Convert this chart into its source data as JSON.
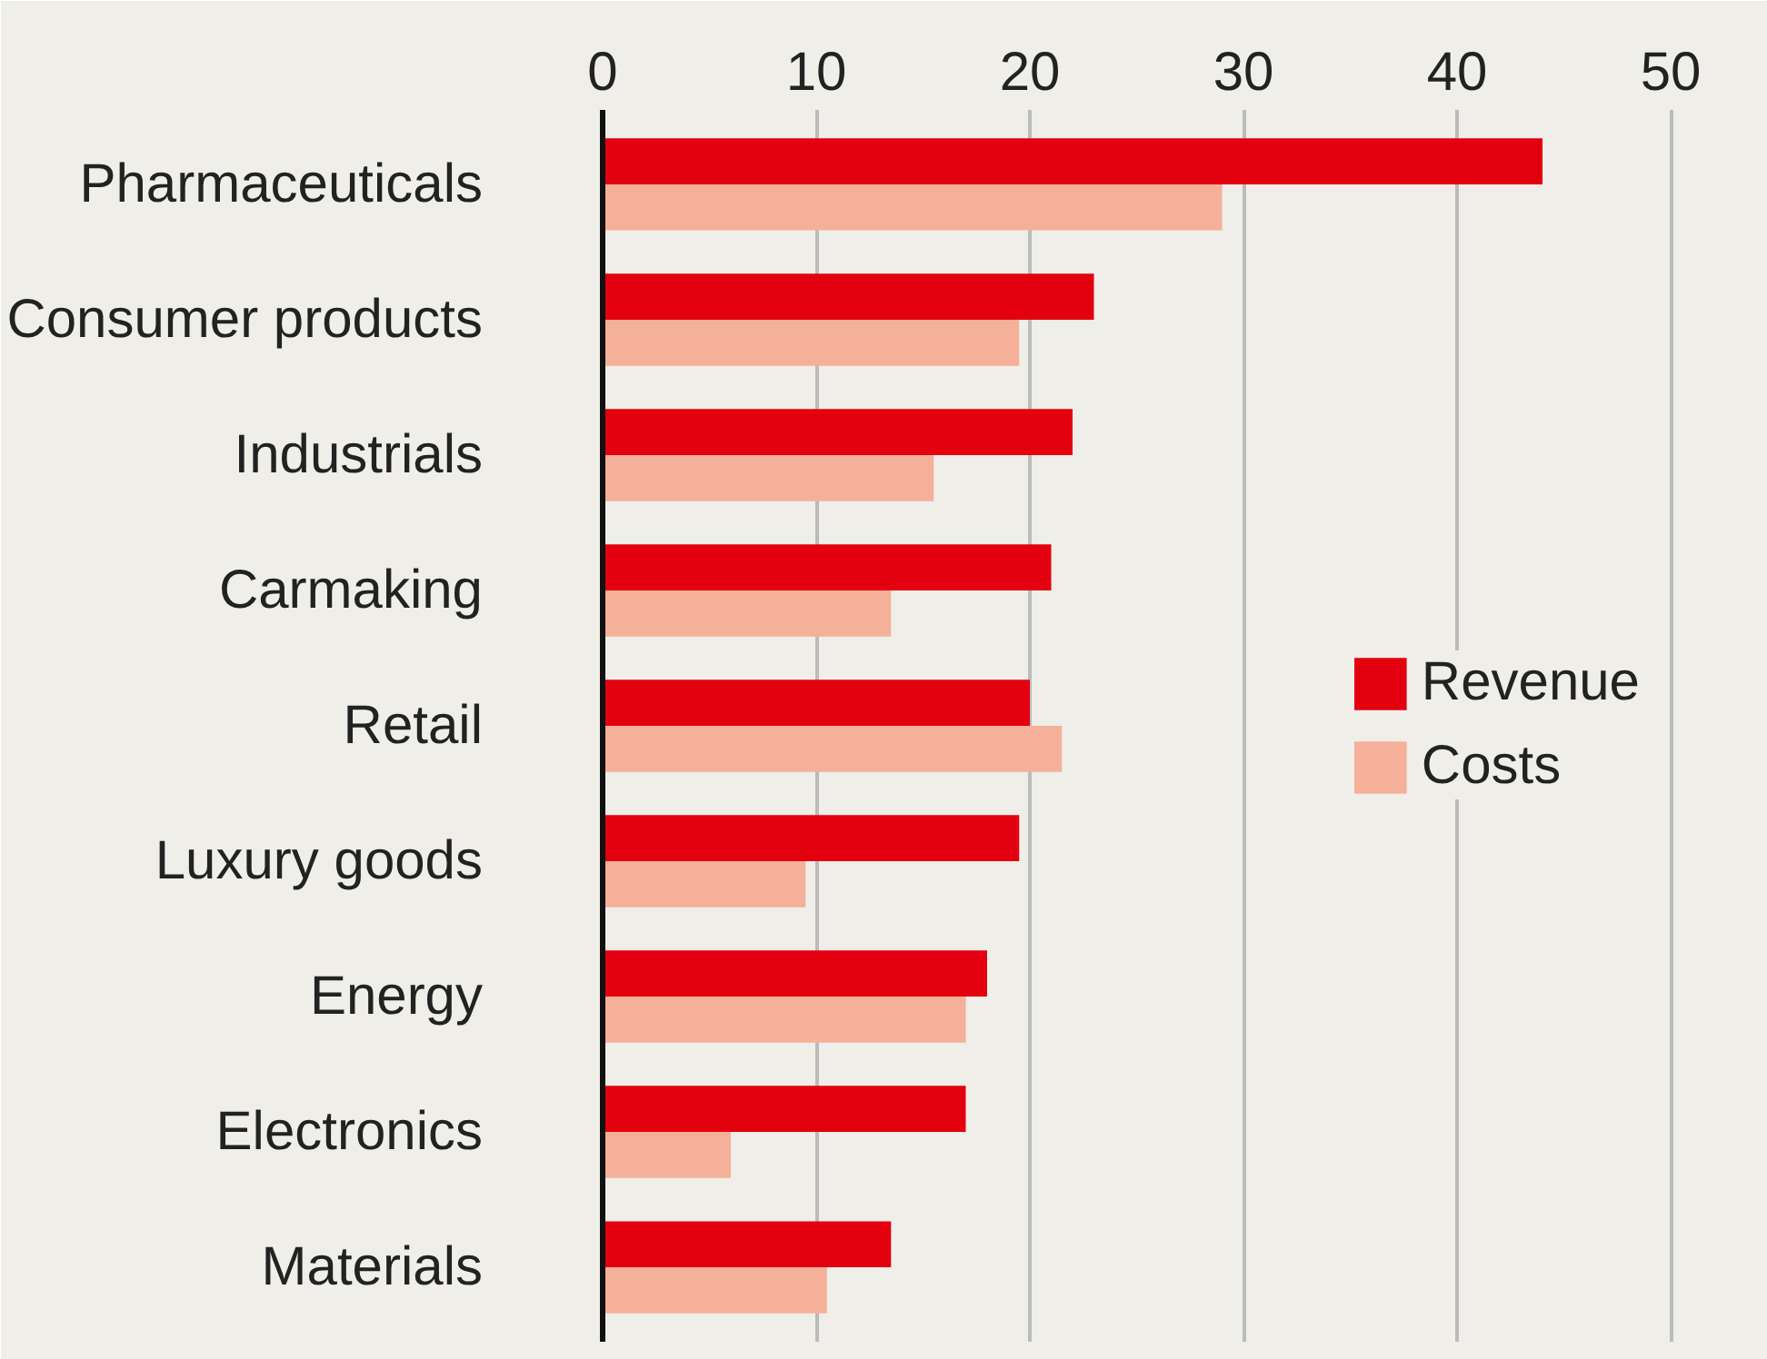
{
  "chart_data": {
    "type": "bar",
    "orientation": "horizontal",
    "categories": [
      "Pharmaceuticals",
      "Consumer products",
      "Industrials",
      "Carmaking",
      "Retail",
      "Luxury goods",
      "Energy",
      "Electronics",
      "Materials"
    ],
    "series": [
      {
        "name": "Revenue",
        "color": "#e3000f",
        "values": [
          44,
          23,
          22,
          21,
          20,
          19.5,
          18,
          17,
          13.5
        ]
      },
      {
        "name": "Costs",
        "color": "#f5b09a",
        "values": [
          29,
          19.5,
          15.5,
          13.5,
          21.5,
          9.5,
          17,
          6,
          10.5
        ]
      }
    ],
    "xlim": [
      0,
      52
    ],
    "xticks": [
      0,
      10,
      20,
      30,
      40,
      50
    ],
    "grid": "x",
    "legend": "right"
  }
}
